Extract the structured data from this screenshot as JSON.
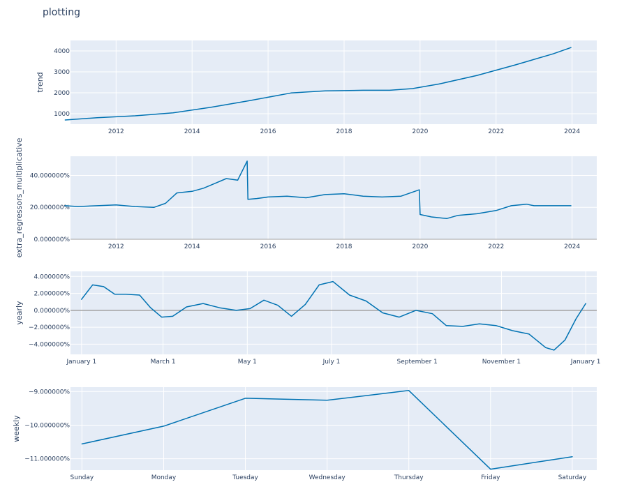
{
  "header": {
    "title": "plotting"
  },
  "colors": {
    "plot_bg": "#e5ecf6",
    "grid": "#ffffff",
    "line": "#0072b2",
    "zeroline": "#a0a0a0",
    "text": "#2a3f5f"
  },
  "chart_data": [
    {
      "id": "trend",
      "type": "line",
      "ylabel": "trend",
      "x_kind": "year",
      "xlim": [
        2010.8,
        2024.65
      ],
      "ylim": [
        500,
        4500
      ],
      "x_ticks": [
        2012,
        2014,
        2016,
        2018,
        2020,
        2022,
        2024
      ],
      "x_tick_labels": [
        "2012",
        "2014",
        "2016",
        "2018",
        "2020",
        "2022",
        "2024"
      ],
      "y_ticks": [
        1000,
        2000,
        3000,
        4000
      ],
      "y_tick_labels": [
        "1000",
        "2000",
        "3000",
        "4000"
      ],
      "series": [
        {
          "x": [
            2010.66,
            2011.5,
            2012.5,
            2013.5,
            2014.5,
            2015.5,
            2016.6,
            2017.5,
            2018.5,
            2019.2,
            2019.8,
            2020.5,
            2021.5,
            2022.5,
            2023.5,
            2023.97
          ],
          "y": [
            700,
            810,
            900,
            1040,
            1310,
            1620,
            1990,
            2090,
            2120,
            2120,
            2200,
            2420,
            2830,
            3330,
            3860,
            4160
          ]
        }
      ]
    },
    {
      "id": "extra_regressors",
      "type": "line",
      "ylabel": "extra_regressors_multiplicative",
      "x_kind": "year",
      "xlim": [
        2010.8,
        2024.65
      ],
      "ylim": [
        0,
        0.52
      ],
      "x_ticks": [
        2012,
        2014,
        2016,
        2018,
        2020,
        2022,
        2024
      ],
      "x_tick_labels": [
        "2012",
        "2014",
        "2016",
        "2018",
        "2020",
        "2022",
        "2024"
      ],
      "y_ticks": [
        0,
        0.2,
        0.4
      ],
      "y_tick_labels": [
        "0.000000%",
        "20.000000%",
        "40.000000%"
      ],
      "series": [
        {
          "x": [
            2010.66,
            2011.0,
            2011.5,
            2012.0,
            2012.5,
            2013.0,
            2013.3,
            2013.6,
            2014.0,
            2014.3,
            2014.6,
            2014.9,
            2015.2,
            2015.45,
            2015.47,
            2015.7,
            2016.0,
            2016.5,
            2017.0,
            2017.5,
            2018.0,
            2018.5,
            2019.0,
            2019.5,
            2019.98,
            2020.0,
            2020.3,
            2020.7,
            2021.0,
            2021.5,
            2022.0,
            2022.4,
            2022.8,
            2023.0,
            2023.97
          ],
          "y": [
            0.21,
            0.205,
            0.21,
            0.215,
            0.205,
            0.2,
            0.225,
            0.29,
            0.3,
            0.32,
            0.35,
            0.38,
            0.37,
            0.49,
            0.25,
            0.255,
            0.265,
            0.27,
            0.26,
            0.28,
            0.285,
            0.27,
            0.265,
            0.27,
            0.31,
            0.155,
            0.14,
            0.13,
            0.15,
            0.16,
            0.18,
            0.21,
            0.22,
            0.21,
            0.21
          ]
        }
      ]
    },
    {
      "id": "yearly",
      "type": "line",
      "ylabel": "yearly",
      "x_kind": "day_of_year",
      "xlim": [
        -8,
        373
      ],
      "ylim": [
        -0.052,
        0.046
      ],
      "zeroline": true,
      "x_ticks": [
        0,
        59,
        120,
        181,
        243,
        304,
        365
      ],
      "x_tick_labels": [
        "January  1",
        "March  1",
        "May  1",
        "July  1",
        "September  1",
        "November  1",
        "January  1"
      ],
      "y_ticks": [
        -0.04,
        -0.02,
        0,
        0.02,
        0.04
      ],
      "y_tick_labels": [
        "−4.000000%",
        "−2.000000%",
        "0.000000%",
        "2.000000%",
        "4.000000%"
      ],
      "series": [
        {
          "x": [
            0,
            8,
            16,
            24,
            32,
            42,
            50,
            58,
            66,
            76,
            88,
            100,
            112,
            122,
            132,
            142,
            152,
            162,
            172,
            182,
            194,
            206,
            218,
            230,
            242,
            254,
            264,
            276,
            288,
            300,
            312,
            324,
            336,
            342,
            350,
            358,
            365
          ],
          "y": [
            0.013,
            0.03,
            0.028,
            0.019,
            0.019,
            0.018,
            0.003,
            -0.008,
            -0.007,
            0.004,
            0.008,
            0.003,
            0.0,
            0.002,
            0.012,
            0.006,
            -0.007,
            0.007,
            0.03,
            0.034,
            0.018,
            0.011,
            -0.003,
            -0.008,
            0.0,
            -0.004,
            -0.018,
            -0.019,
            -0.016,
            -0.018,
            -0.024,
            -0.028,
            -0.044,
            -0.047,
            -0.035,
            -0.01,
            0.008
          ]
        }
      ]
    },
    {
      "id": "weekly",
      "type": "line",
      "ylabel": "weekly",
      "x_kind": "category",
      "xlim": [
        -0.14,
        6.3
      ],
      "ylim": [
        -0.1134,
        -0.0887
      ],
      "x_ticks": [
        0,
        1,
        2,
        3,
        4,
        5,
        6
      ],
      "x_tick_labels": [
        "Sunday",
        "Monday",
        "Tuesday",
        "Wednesday",
        "Thursday",
        "Friday",
        "Saturday"
      ],
      "y_ticks": [
        -0.11,
        -0.1,
        -0.09
      ],
      "y_tick_labels": [
        "−11.000000%",
        "−10.000000%",
        "−9.000000%"
      ],
      "series": [
        {
          "x": [
            0,
            1,
            2,
            3,
            4,
            5,
            6
          ],
          "y": [
            -0.1056,
            -0.1003,
            -0.092,
            -0.0926,
            -0.0897,
            -0.1131,
            -0.1094
          ]
        }
      ]
    }
  ]
}
